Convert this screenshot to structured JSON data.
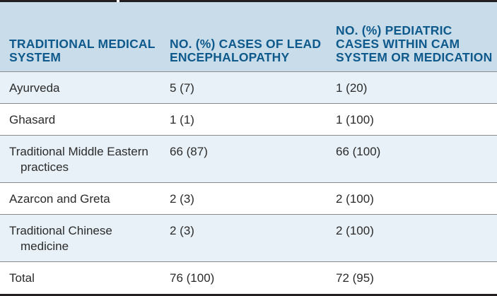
{
  "table": {
    "headers": [
      "TRADITIONAL MEDICAL SYSTEM",
      "NO. (%) CASES OF LEAD ENCEPHALOPATHY",
      "NO. (%) PEDIATRIC CASES WITHIN CAM SYSTEM OR MEDICATION"
    ],
    "rows": [
      {
        "system": "Ayurveda",
        "cases": "5 (7)",
        "pediatric": "1 (20)"
      },
      {
        "system": "Ghasard",
        "cases": "1 (1)",
        "pediatric": "1 (100)"
      },
      {
        "system": "Traditional Middle Eastern practices",
        "cases": "66 (87)",
        "pediatric": "66 (100)"
      },
      {
        "system": "Azarcon and Greta",
        "cases": "2 (3)",
        "pediatric": "2 (100)"
      },
      {
        "system": "Traditional Chinese medicine",
        "cases": "2 (3)",
        "pediatric": "2 (100)"
      },
      {
        "system": "Total",
        "cases": "76 (100)",
        "pediatric": "72 (95)"
      }
    ]
  },
  "colors": {
    "header_bg": "#c9dce9",
    "header_text": "#0f5a8c",
    "stripe_bg": "#e8f1f7",
    "rule": "#231f20"
  }
}
